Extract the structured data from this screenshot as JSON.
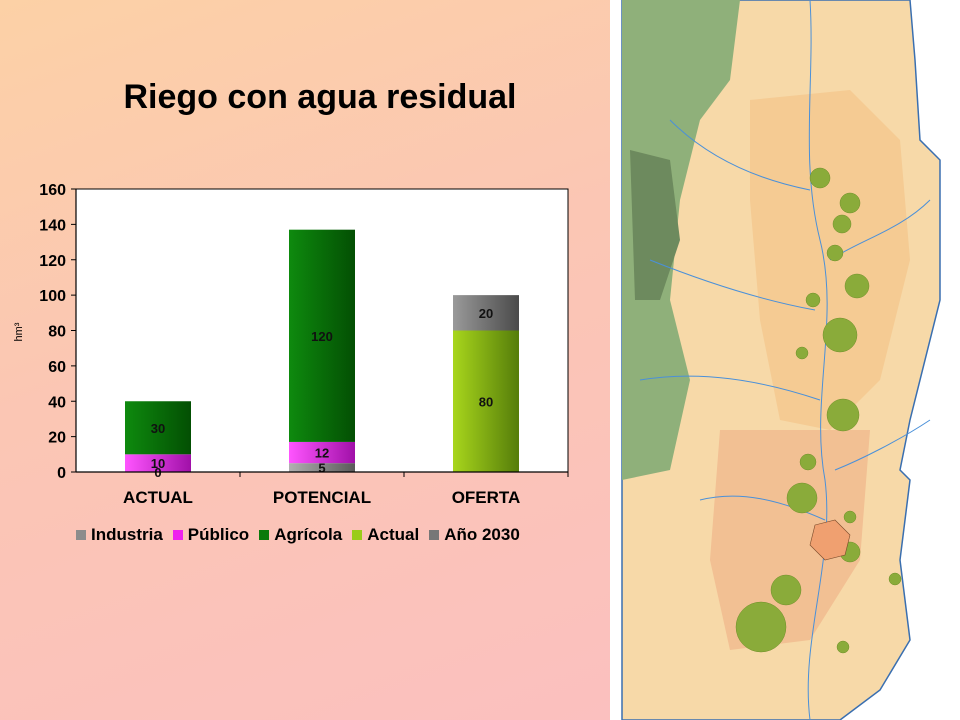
{
  "title": "Riego con agua residual",
  "chart_data": {
    "type": "bar",
    "stacked": true,
    "categories": [
      "ACTUAL",
      "POTENCIAL",
      "OFERTA"
    ],
    "ylabel": "hm³",
    "ylim": [
      0,
      160
    ],
    "yticks": [
      0,
      20,
      40,
      60,
      80,
      100,
      120,
      140,
      160
    ],
    "grid": false,
    "legend_position": "bottom",
    "series": [
      {
        "name": "Industria",
        "values": [
          0,
          5,
          null
        ],
        "labels": [
          "0",
          "5",
          ""
        ],
        "color": "#8c8c8c"
      },
      {
        "name": "Público",
        "values": [
          10,
          12,
          null
        ],
        "labels": [
          "10",
          "12",
          ""
        ],
        "color": "#ee22ee"
      },
      {
        "name": "Agrícola",
        "values": [
          30,
          120,
          null
        ],
        "labels": [
          "30",
          "120",
          ""
        ],
        "color": "#0b7a0b"
      },
      {
        "name": "Actual",
        "values": [
          null,
          null,
          80
        ],
        "labels": [
          "",
          "",
          "80"
        ],
        "color": "#9acc1a"
      },
      {
        "name": "Año 2030",
        "values": [
          null,
          null,
          20
        ],
        "labels": [
          "",
          "",
          "20"
        ],
        "color": "#777777"
      }
    ]
  },
  "colors": {
    "frame": "#000000",
    "plot_bg": "#ffffff"
  },
  "icons": {
    "map": "river-basin-map-image"
  }
}
